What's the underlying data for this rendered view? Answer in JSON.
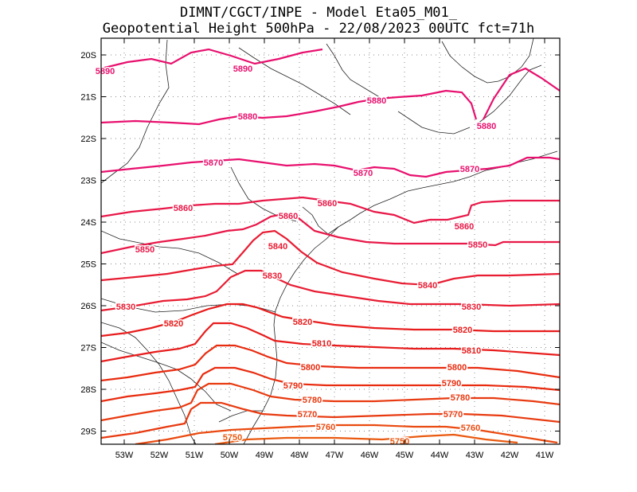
{
  "header": {
    "line1": "DIMNT/CGCT/INPE -  Model Eta05_M01_",
    "line2": "Geopotential Height 500hPa -  22/08/2023 00UTC fct=71h"
  },
  "map": {
    "lat_labels": [
      "20S",
      "21S",
      "22S",
      "23S",
      "24S",
      "25S",
      "26S",
      "27S",
      "28S",
      "29S"
    ],
    "lon_labels": [
      "53W",
      "52W",
      "51W",
      "50W",
      "49W",
      "48W",
      "47W",
      "46W",
      "45W",
      "44W",
      "43W",
      "42W",
      "41W"
    ],
    "contours": [
      {
        "value": "5890",
        "color": "#e8106e"
      },
      {
        "value": "5880",
        "color": "#e8106e"
      },
      {
        "value": "5870",
        "color": "#e8106e"
      },
      {
        "value": "5860",
        "color": "#e81848"
      },
      {
        "value": "5850",
        "color": "#e81848"
      },
      {
        "value": "5840",
        "color": "#e81c32"
      },
      {
        "value": "5830",
        "color": "#e81c32"
      },
      {
        "value": "5820",
        "color": "#e81c1c"
      },
      {
        "value": "5810",
        "color": "#e81c1c"
      },
      {
        "value": "5800",
        "color": "#e82c10"
      },
      {
        "value": "5790",
        "color": "#e82c10"
      },
      {
        "value": "5780",
        "color": "#e83a10"
      },
      {
        "value": "5770",
        "color": "#e83a10"
      },
      {
        "value": "5760",
        "color": "#ea4a10"
      },
      {
        "value": "5750",
        "color": "#ea5a10"
      }
    ]
  }
}
